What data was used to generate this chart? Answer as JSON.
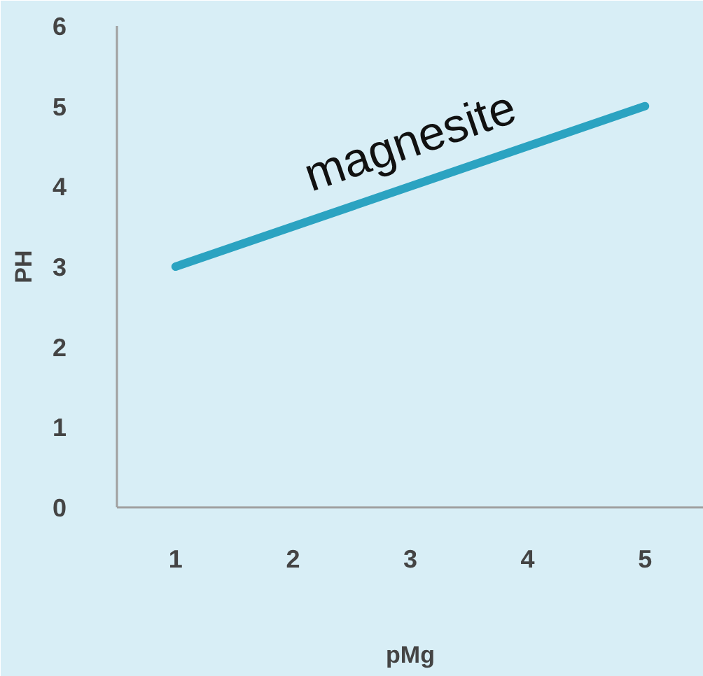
{
  "chart_data": {
    "type": "line",
    "xlabel": "pMg",
    "ylabel": "PH",
    "x": [
      1,
      5
    ],
    "series": [
      {
        "name": "magnesite",
        "color": "#2ba3c1",
        "values": [
          3,
          5
        ]
      }
    ],
    "xlim": [
      0.5,
      5.5
    ],
    "ylim": [
      0,
      6
    ],
    "xticks": [
      1,
      2,
      3,
      4,
      5
    ],
    "yticks": [
      0,
      1,
      2,
      3,
      4,
      5,
      6
    ],
    "grid": false,
    "legend": false
  }
}
